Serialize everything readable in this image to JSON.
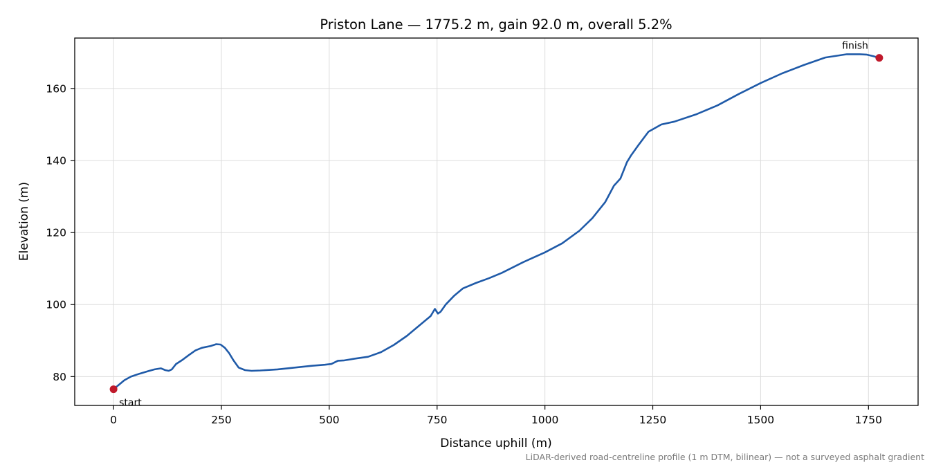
{
  "chart_data": {
    "type": "line",
    "title": "Priston Lane — 1775.2 m, gain 92.0 m, overall 5.2%",
    "xlabel": "Distance uphill (m)",
    "ylabel": "Elevation (m)",
    "xlim": [
      -90,
      1865
    ],
    "ylim": [
      72,
      174
    ],
    "xticks": [
      0,
      250,
      500,
      750,
      1000,
      1250,
      1500,
      1750
    ],
    "yticks": [
      80,
      100,
      120,
      140,
      160
    ],
    "grid": true,
    "footnote": "LiDAR-derived road-centreline profile (1 m DTM, bilinear) — not a surveyed asphalt gradient",
    "line_color": "#1f5aa8",
    "marker_color": "#c0192b",
    "series": [
      {
        "x": [
          0,
          10,
          25,
          40,
          60,
          80,
          95,
          110,
          120,
          128,
          135,
          145,
          158,
          175,
          190,
          205,
          225,
          238,
          248,
          258,
          268,
          278,
          290,
          305,
          320,
          340,
          380,
          420,
          460,
          490,
          505,
          520,
          535,
          560,
          590,
          620,
          650,
          680,
          710,
          735,
          745,
          752,
          758,
          770,
          790,
          810,
          840,
          870,
          900,
          950,
          1000,
          1040,
          1080,
          1110,
          1140,
          1160,
          1175,
          1190,
          1200,
          1215,
          1240,
          1270,
          1300,
          1350,
          1400,
          1450,
          1500,
          1550,
          1600,
          1650,
          1700,
          1730,
          1745,
          1760,
          1775
        ],
        "y": [
          76.5,
          77.5,
          79,
          80,
          80.8,
          81.5,
          82,
          82.3,
          81.8,
          81.6,
          82,
          83.5,
          84.5,
          86,
          87.3,
          88,
          88.5,
          89,
          88.9,
          88,
          86.5,
          84.5,
          82.5,
          81.8,
          81.6,
          81.7,
          82,
          82.5,
          83,
          83.3,
          83.5,
          84.4,
          84.5,
          85,
          85.5,
          86.8,
          88.8,
          91.3,
          94.3,
          96.8,
          98.8,
          97.5,
          98,
          100,
          102.5,
          104.5,
          106,
          107.3,
          108.8,
          111.8,
          114.5,
          117,
          120.5,
          124,
          128.5,
          133,
          135,
          139.5,
          141.5,
          144,
          148,
          150,
          150.8,
          152.8,
          155.3,
          158.5,
          161.5,
          164.2,
          166.5,
          168.6,
          169.5,
          169.5,
          169.4,
          169.0,
          168.5
        ]
      }
    ],
    "markers": [
      {
        "label": "start",
        "x": 0,
        "y": 76.5
      },
      {
        "label": "finish",
        "x": 1775,
        "y": 168.5
      }
    ]
  }
}
